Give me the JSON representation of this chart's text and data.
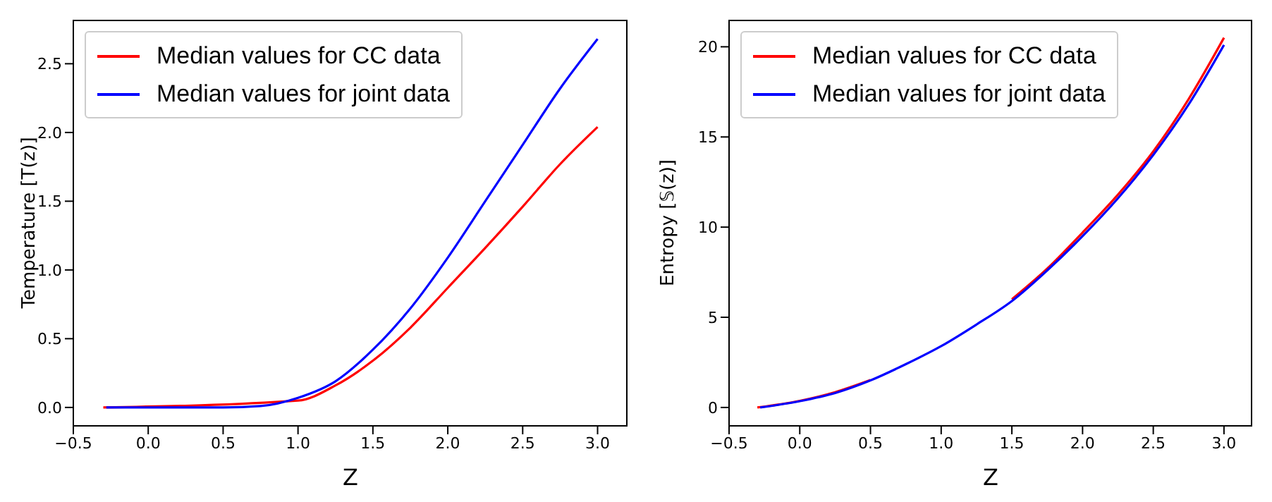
{
  "chart_data": [
    {
      "type": "line",
      "xlabel": "Z",
      "ylabel": "Temperature [T(z)]",
      "legend": "top left",
      "grid": false,
      "xlim": [
        -0.5,
        3.2
      ],
      "ylim": [
        -0.134,
        2.82
      ],
      "xticks": [
        {
          "value": -0.5,
          "label": "−0.5"
        },
        {
          "value": 0,
          "label": "0.0"
        },
        {
          "value": 0.5,
          "label": "0.5"
        },
        {
          "value": 1,
          "label": "1.0"
        },
        {
          "value": 1.5,
          "label": "1.5"
        },
        {
          "value": 2,
          "label": "2.0"
        },
        {
          "value": 2.5,
          "label": "2.5"
        },
        {
          "value": 3,
          "label": "3.0"
        }
      ],
      "yticks": [
        {
          "value": 0,
          "label": "0.0"
        },
        {
          "value": 0.5,
          "label": "0.5"
        },
        {
          "value": 1,
          "label": "1.0"
        },
        {
          "value": 1.5,
          "label": "1.5"
        },
        {
          "value": 2,
          "label": "2.0"
        },
        {
          "value": 2.5,
          "label": "2.5"
        }
      ],
      "series": [
        {
          "name": "Median values for CC data",
          "color": "#ff0000",
          "x": [
            -0.3,
            1,
            1.25,
            1.5,
            1.75,
            2,
            2.25,
            2.5,
            2.75,
            3
          ],
          "values": [
            0,
            0.05,
            0.16,
            0.34,
            0.58,
            0.87,
            1.16,
            1.46,
            1.77,
            2.04
          ]
        },
        {
          "name": "Median values for joint data",
          "color": "#0000ff",
          "x": [
            -0.28,
            0,
            0.5,
            0.75,
            1,
            1.25,
            1.5,
            1.75,
            2,
            2.25,
            2.5,
            2.75,
            3
          ],
          "values": [
            0,
            0,
            0,
            0.01,
            0.07,
            0.19,
            0.42,
            0.72,
            1.09,
            1.5,
            1.91,
            2.32,
            2.68
          ]
        }
      ]
    },
    {
      "type": "line",
      "xlabel": "Z",
      "ylabel": "Entropy [𝕊(z)]",
      "legend": "top left",
      "grid": false,
      "xlim": [
        -0.5,
        3.2
      ],
      "ylim": [
        -1.02,
        21.5
      ],
      "xticks": [
        {
          "value": -0.5,
          "label": "−0.5"
        },
        {
          "value": 0,
          "label": "0.0"
        },
        {
          "value": 0.5,
          "label": "0.5"
        },
        {
          "value": 1,
          "label": "1.0"
        },
        {
          "value": 1.5,
          "label": "1.5"
        },
        {
          "value": 2,
          "label": "2.0"
        },
        {
          "value": 2.5,
          "label": "2.5"
        },
        {
          "value": 3,
          "label": "3.0"
        }
      ],
      "yticks": [
        0,
        5,
        10,
        15,
        20
      ],
      "series": [
        {
          "name": "Median values for CC data",
          "color": "#ff0000",
          "x": [
            -0.3,
            0,
            0.25,
            0.5,
            0.75,
            1,
            1.25,
            1.5,
            1.75,
            2,
            2.25,
            2.5,
            2.75,
            3
          ],
          "values": [
            0,
            0.37,
            0.85,
            1.52,
            null,
            null,
            null,
            6.0,
            7.7,
            9.7,
            11.8,
            14.2,
            17.1,
            20.5
          ]
        },
        {
          "name": "Median values for joint data",
          "color": "#0000ff",
          "x": [
            -0.28,
            0,
            0.25,
            0.5,
            0.75,
            1,
            1.25,
            1.5,
            1.75,
            2,
            2.25,
            2.5,
            2.75,
            3
          ],
          "values": [
            0,
            0.35,
            0.8,
            1.5,
            2.4,
            3.4,
            4.6,
            5.9,
            7.6,
            9.5,
            11.6,
            14.0,
            16.8,
            20.1
          ]
        }
      ]
    }
  ]
}
